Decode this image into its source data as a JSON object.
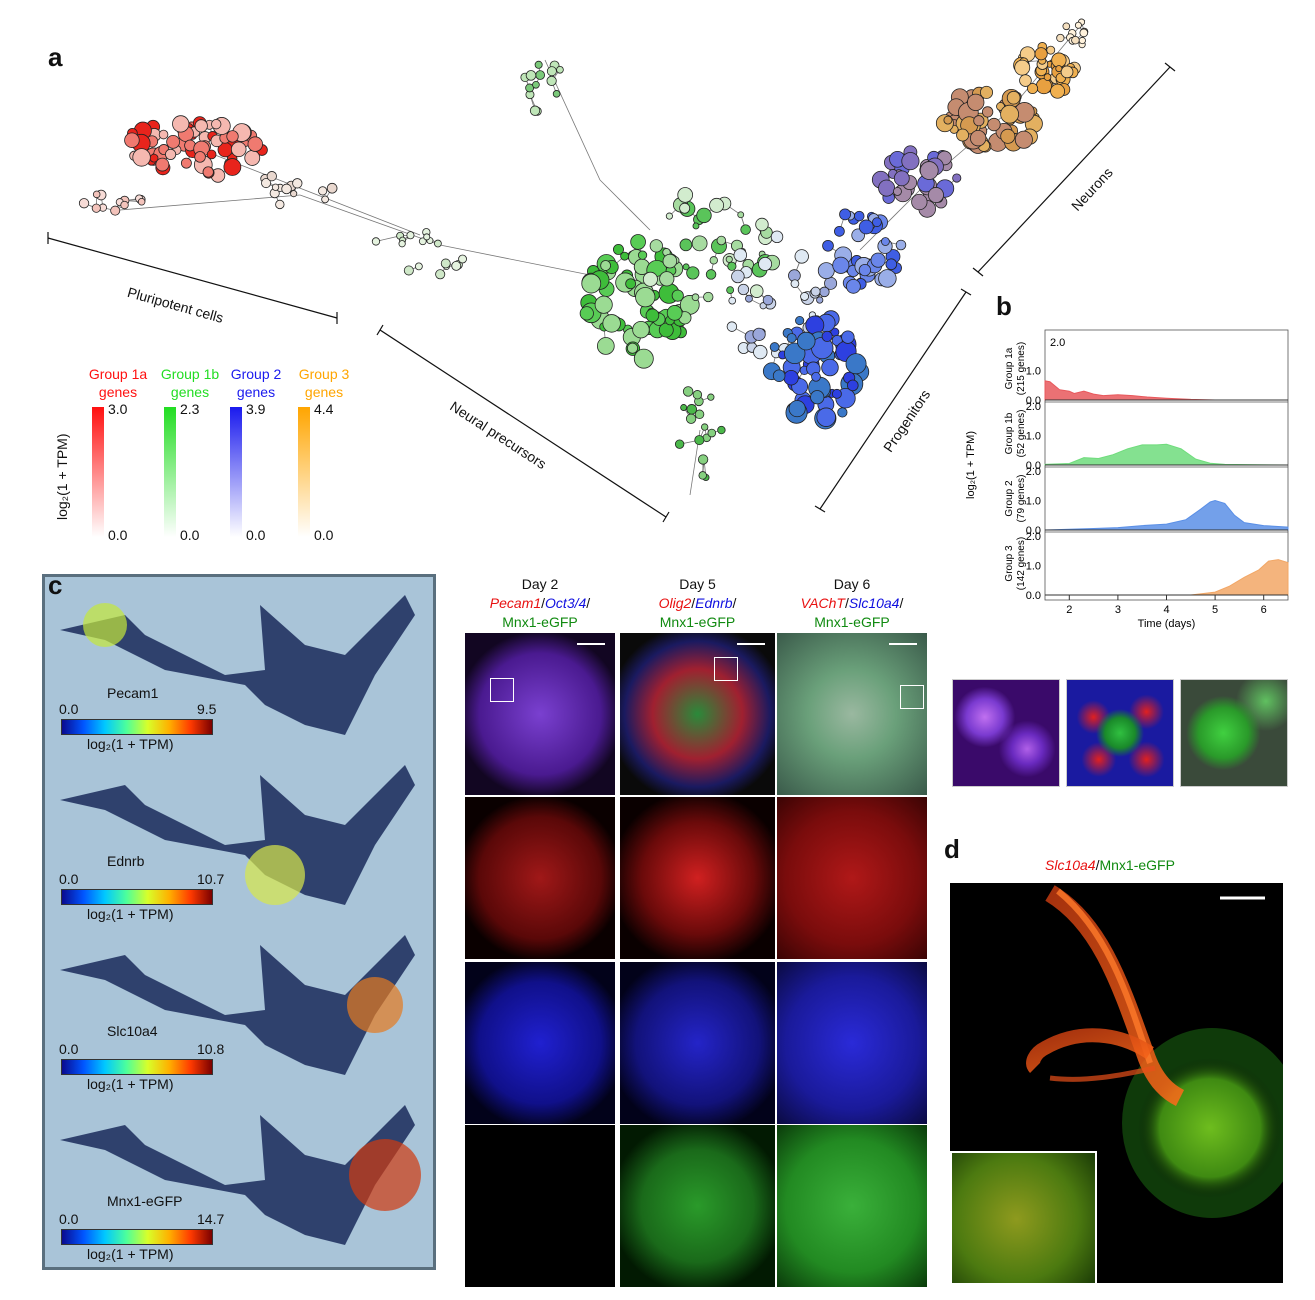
{
  "panels": {
    "a": "a",
    "b": "b",
    "c": "c",
    "d": "d"
  },
  "panel_a": {
    "segments": {
      "pluripotent": "Pluripotent cells",
      "neural_precursors": "Neural precursors",
      "progenitors": "Progenitors",
      "neurons": "Neurons"
    },
    "legend": {
      "axis_label": "log₂(1 + TPM)",
      "groups": [
        {
          "title_line1": "Group 1a",
          "title_line2": "genes",
          "max": "3.0",
          "min": "0.0",
          "color": "#ff1010"
        },
        {
          "title_line1": "Group 1b",
          "title_line2": "genes",
          "max": "2.3",
          "min": "0.0",
          "color": "#22dd22"
        },
        {
          "title_line1": "Group 2",
          "title_line2": "genes",
          "max": "3.9",
          "min": "0.0",
          "color": "#1a1aee"
        },
        {
          "title_line1": "Group 3",
          "title_line2": "genes",
          "max": "4.4",
          "min": "0.0",
          "color": "#ffa500"
        }
      ]
    }
  },
  "chart_data": {
    "type": "area",
    "xlabel": "Time (days)",
    "ylabel": "log₂(1 + TPM)",
    "x_ticks": [
      "2",
      "3",
      "4",
      "5",
      "6"
    ],
    "xlim": [
      1.5,
      6.5
    ],
    "ylim": [
      0,
      2.0
    ],
    "corner_label": "2.0",
    "series": [
      {
        "name": "Group 1a (215 genes)",
        "color": "#e8585c",
        "x": [
          1.5,
          1.6,
          1.8,
          2.0,
          2.1,
          2.3,
          2.5,
          2.7,
          3.0,
          3.3,
          3.6,
          4.0,
          4.5,
          5.0,
          6.5
        ],
        "y": [
          0.65,
          0.62,
          0.35,
          0.3,
          0.22,
          0.3,
          0.2,
          0.15,
          0.18,
          0.15,
          0.1,
          0.06,
          0.02,
          0.0,
          0.0
        ],
        "tick_labels": [
          "0.0",
          "1.0"
        ]
      },
      {
        "name": "Group 1b (52 genes)",
        "color": "#6fdc7c",
        "x": [
          1.5,
          2.0,
          2.3,
          2.6,
          2.9,
          3.2,
          3.5,
          3.8,
          4.0,
          4.3,
          4.6,
          4.9,
          5.2,
          6.5
        ],
        "y": [
          0.02,
          0.05,
          0.25,
          0.22,
          0.35,
          0.55,
          0.68,
          0.68,
          0.7,
          0.55,
          0.2,
          0.06,
          0.02,
          0.0
        ],
        "tick_labels": [
          "0.0",
          "1.0",
          "2.0"
        ]
      },
      {
        "name": "Group 2 (79 genes)",
        "color": "#5a8fe6",
        "x": [
          1.5,
          2.5,
          3.0,
          3.5,
          4.0,
          4.4,
          4.7,
          4.9,
          5.0,
          5.2,
          5.4,
          5.6,
          6.0,
          6.5
        ],
        "y": [
          0.0,
          0.05,
          0.08,
          0.15,
          0.2,
          0.35,
          0.7,
          0.95,
          1.0,
          0.9,
          0.5,
          0.25,
          0.15,
          0.1
        ],
        "tick_labels": [
          "0.0",
          "1.0",
          "2.0"
        ]
      },
      {
        "name": "Group 3 (142 genes)",
        "color": "#f2a766",
        "x": [
          1.5,
          4.5,
          5.0,
          5.3,
          5.6,
          5.9,
          6.1,
          6.3,
          6.5
        ],
        "y": [
          0.0,
          0.0,
          0.1,
          0.3,
          0.6,
          0.85,
          1.15,
          1.2,
          1.1
        ],
        "tick_labels": [
          "0.0",
          "1.0",
          "2.0"
        ]
      }
    ],
    "facet_labels": [
      {
        "line1": "Group 1a",
        "line2": "(215 genes)"
      },
      {
        "line1": "Group 1b",
        "line2": "(52 genes)"
      },
      {
        "line1": "Group 2",
        "line2": "(79 genes)"
      },
      {
        "line1": "Group 3",
        "line2": "(142 genes)"
      }
    ]
  },
  "panel_c": {
    "colorbar_label": "log₂(1 + TPM)",
    "genes": [
      {
        "name": "Pecam1",
        "min": "0.0",
        "max": "9.5"
      },
      {
        "name": "Ednrb",
        "min": "0.0",
        "max": "10.7"
      },
      {
        "name": "Slc10a4",
        "min": "0.0",
        "max": "10.8"
      },
      {
        "name": "Mnx1-eGFP",
        "min": "0.0",
        "max": "14.7"
      }
    ],
    "columns": [
      {
        "day": "Day 2",
        "m1": "Pecam1",
        "m2": "Oct3/4",
        "m3": "Mnx1-eGFP"
      },
      {
        "day": "Day 5",
        "m1": "Olig2",
        "m2": "Ednrb",
        "m3": "Mnx1-eGFP"
      },
      {
        "day": "Day 6",
        "m1": "VAChT",
        "m2": "Slc10a4",
        "m3": "Mnx1-eGFP"
      }
    ]
  },
  "panel_d": {
    "marker_red": "Slc10a4",
    "marker_green": "Mnx1-eGFP"
  },
  "colors": {
    "red": "#e81010",
    "blue": "#1010e0",
    "green": "#108a10"
  }
}
